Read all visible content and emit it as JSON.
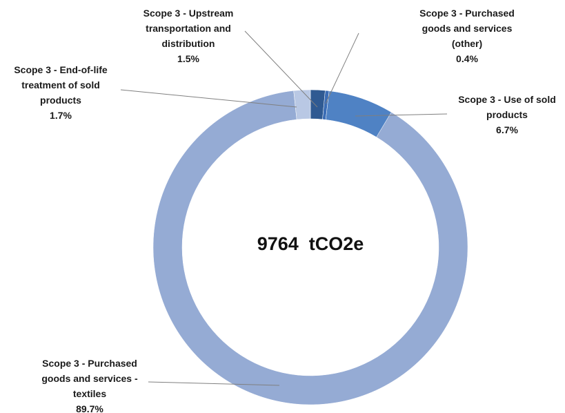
{
  "chart_data": {
    "type": "donut",
    "center_label": "9764  tCO2e",
    "categories": [
      "Scope 3 - Upstream transportation and distribution",
      "Scope 3 - Purchased goods and services (other)",
      "Scope 3 - Use of sold products",
      "Scope 3 - Purchased goods and services - textiles",
      "Scope 3 - End-of-life treatment of sold products"
    ],
    "values": [
      1.5,
      0.4,
      6.7,
      89.7,
      1.7
    ],
    "value_labels": [
      "1.5%",
      "0.4%",
      "6.7%",
      "89.7%",
      "1.7%"
    ],
    "colors": [
      "#2f5a92",
      "#3b6db5",
      "#4f82c4",
      "#95abd4",
      "#b9c8e4"
    ]
  }
}
